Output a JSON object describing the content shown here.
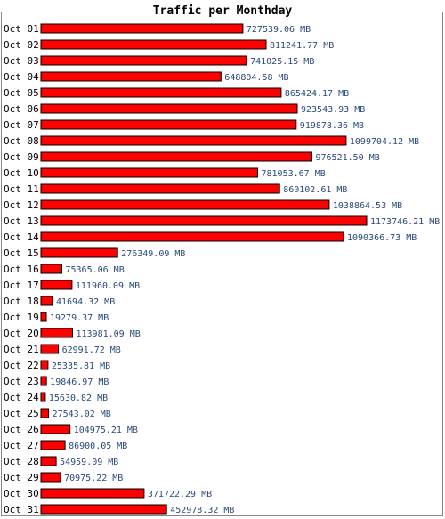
{
  "chart_data": {
    "type": "bar",
    "orientation": "horizontal",
    "title": "Traffic per Monthday",
    "unit": "MB",
    "categories": [
      "Oct 01",
      "Oct 02",
      "Oct 03",
      "Oct 04",
      "Oct 05",
      "Oct 06",
      "Oct 07",
      "Oct 08",
      "Oct 09",
      "Oct 10",
      "Oct 11",
      "Oct 12",
      "Oct 13",
      "Oct 14",
      "Oct 15",
      "Oct 16",
      "Oct 17",
      "Oct 18",
      "Oct 19",
      "Oct 20",
      "Oct 21",
      "Oct 22",
      "Oct 23",
      "Oct 24",
      "Oct 25",
      "Oct 26",
      "Oct 27",
      "Oct 28",
      "Oct 29",
      "Oct 30",
      "Oct 31"
    ],
    "values": [
      727539.06,
      811241.77,
      741025.15,
      648804.58,
      865424.17,
      923543.93,
      919878.36,
      1099704.12,
      976521.5,
      781053.67,
      860102.61,
      1038864.53,
      1173746.21,
      1090366.73,
      276349.09,
      75365.06,
      111960.09,
      41694.32,
      19279.37,
      113981.09,
      62991.72,
      25335.81,
      19846.97,
      15630.82,
      27543.02,
      104975.21,
      86900.05,
      54959.09,
      70975.22,
      371722.29,
      452978.32
    ],
    "value_labels": [
      "727539.06 MB",
      "811241.77 MB",
      "741025.15 MB",
      "648804.58 MB",
      "865424.17 MB",
      "923543.93 MB",
      "919878.36 MB",
      "1099704.12 MB",
      "976521.50 MB",
      "781053.67 MB",
      "860102.61 MB",
      "1038864.53 MB",
      "1173746.21 MB",
      "1090366.73 MB",
      "276349.09 MB",
      "75365.06 MB",
      "111960.09 MB",
      "41694.32 MB",
      "19279.37 MB",
      "113981.09 MB",
      "62991.72 MB",
      "25335.81 MB",
      "19846.97 MB",
      "15630.82 MB",
      "27543.02 MB",
      "104975.21 MB",
      "86900.05 MB",
      "54959.09 MB",
      "70975.22 MB",
      "371722.29 MB",
      "452978.32 MB"
    ],
    "xlim": [
      0,
      1173746.21
    ],
    "grid": false,
    "legend": "none"
  },
  "colors": {
    "bar_fill": "#ff0000",
    "bar_stroke": "#000000",
    "value_text": "#2a4a7a",
    "label_text": "#000000",
    "frame": "#888888"
  }
}
